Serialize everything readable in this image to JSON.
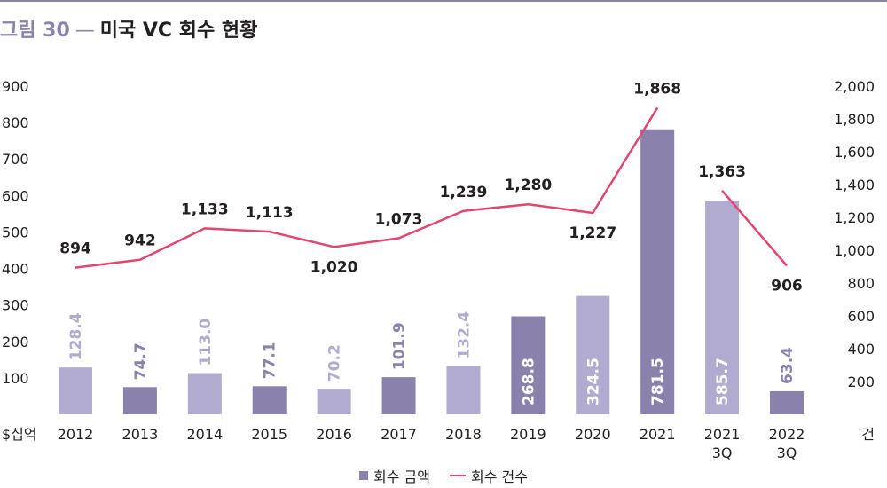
{
  "title": {
    "number": "그림 30",
    "separator": "—",
    "text": "미국 VC 회수 현황"
  },
  "chart_data": {
    "type": "bar",
    "categories": [
      [
        "2012"
      ],
      [
        "2013"
      ],
      [
        "2014"
      ],
      [
        "2015"
      ],
      [
        "2016"
      ],
      [
        "2017"
      ],
      [
        "2018"
      ],
      [
        "2019"
      ],
      [
        "2020"
      ],
      [
        "2021"
      ],
      [
        "2021",
        "3Q"
      ],
      [
        "2022",
        "3Q"
      ]
    ],
    "y_left": {
      "unit_label": "$십억",
      "ticks": [
        "100",
        "200",
        "300",
        "400",
        "500",
        "600",
        "700",
        "800",
        "900"
      ],
      "ylim": [
        0,
        900
      ]
    },
    "y_right": {
      "unit_label": "건",
      "ticks": [
        "200",
        "400",
        "600",
        "800",
        "1,000",
        "1,200",
        "1,400",
        "1,600",
        "1,800",
        "2,000"
      ],
      "ylim": [
        0,
        2000
      ]
    },
    "series": [
      {
        "name": "회수 금액",
        "type": "bar",
        "axis": "left",
        "values": [
          128.4,
          74.7,
          113.0,
          77.1,
          70.2,
          101.9,
          132.4,
          268.8,
          324.5,
          781.5,
          585.7,
          63.4
        ],
        "labels": [
          "128.4",
          "74.7",
          "113.0",
          "77.1",
          "70.2",
          "101.9",
          "132.4",
          "268.8",
          "324.5",
          "781.5",
          "585.7",
          "63.4"
        ],
        "colors": [
          "#b1abcf",
          "#8a82ad",
          "#b1abcf",
          "#8a82ad",
          "#b1abcf",
          "#8a82ad",
          "#b1abcf",
          "#8a82ad",
          "#b1abcf",
          "#8a82ad",
          "#b1abcf",
          "#8a82ad"
        ]
      },
      {
        "name": "회수 건수",
        "type": "line",
        "axis": "right",
        "color": "#e2466f",
        "values": [
          894,
          942,
          1133,
          1113,
          1020,
          1073,
          1239,
          1280,
          1227,
          1868,
          1363,
          906
        ],
        "labels": [
          "894",
          "942",
          "1,133",
          "1,113",
          "1,020",
          "1,073",
          "1,239",
          "1,280",
          "1,227",
          "1,868",
          "1,363",
          "906"
        ],
        "segments": [
          [
            0,
            1,
            2,
            3,
            4,
            5,
            6,
            7,
            8,
            9
          ],
          [
            10,
            11
          ]
        ]
      }
    ],
    "legend": {
      "position": "bottom-center"
    },
    "grid": false
  }
}
